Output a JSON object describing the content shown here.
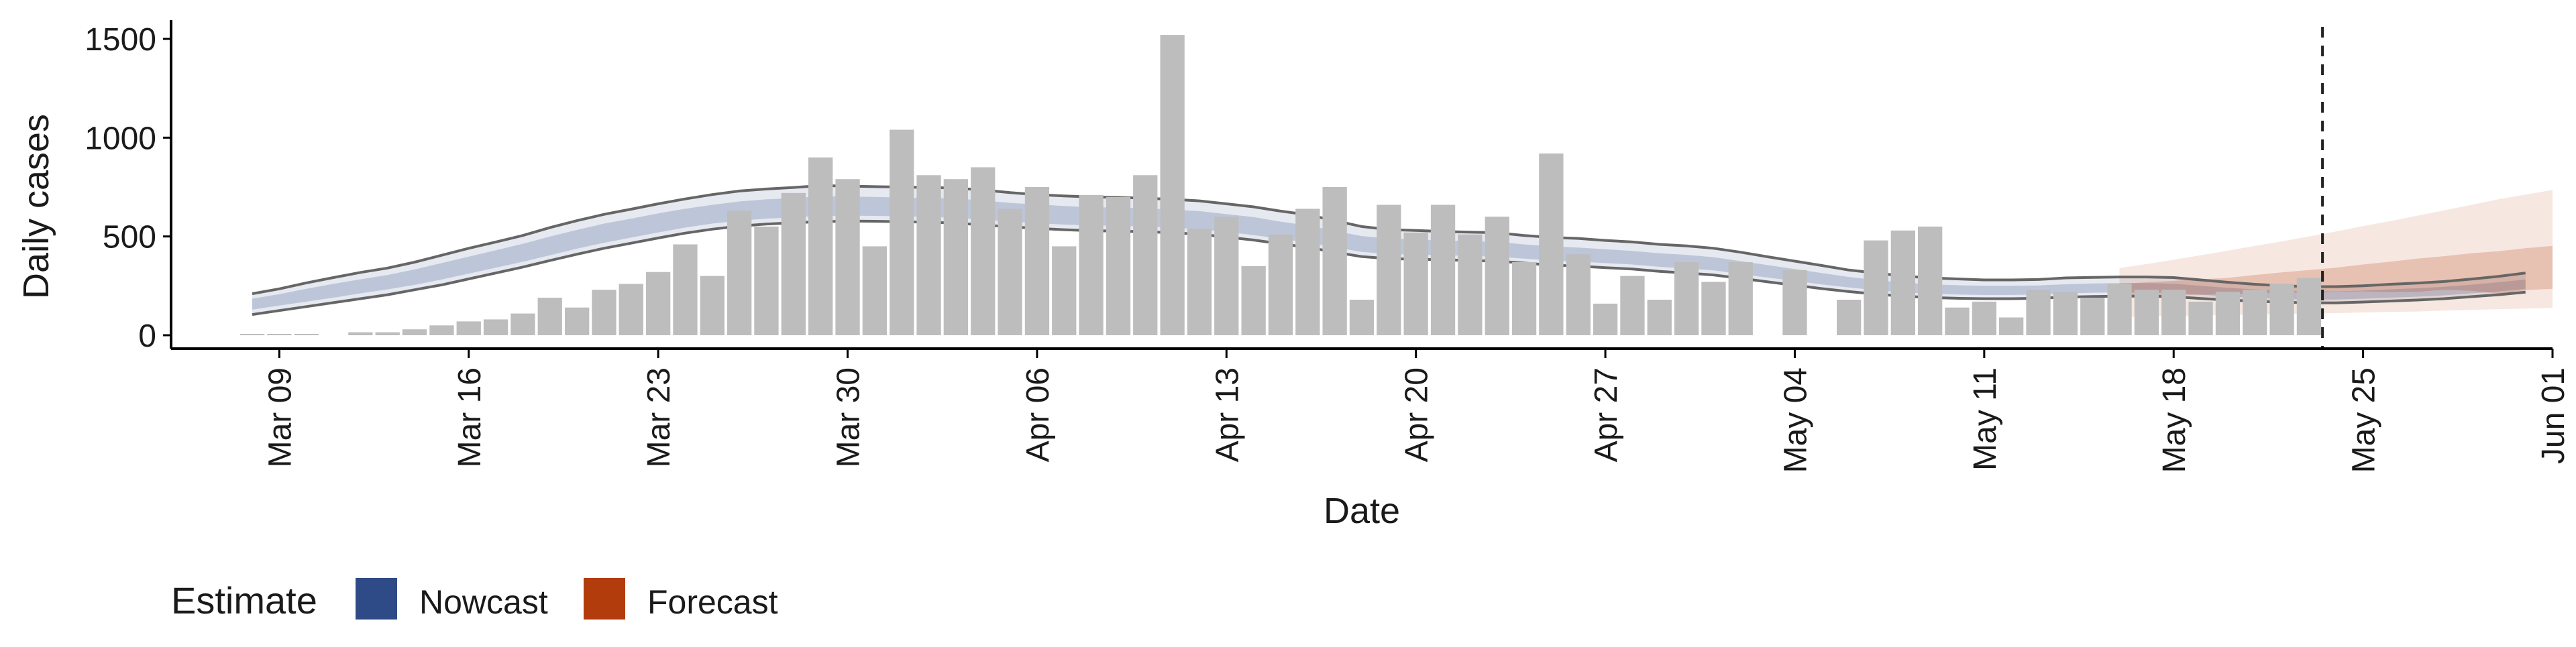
{
  "chart_data": {
    "type": "bar",
    "xlabel": "Date",
    "ylabel": "Daily cases",
    "ylim": [
      0,
      1500
    ],
    "y_ticks": [
      0,
      500,
      1000,
      1500
    ],
    "x_range": [
      "2020-03-05",
      "2020-06-01"
    ],
    "x_ticks": [
      {
        "date": "2020-03-09",
        "label": "Mar 09"
      },
      {
        "date": "2020-03-16",
        "label": "Mar 16"
      },
      {
        "date": "2020-03-23",
        "label": "Mar 23"
      },
      {
        "date": "2020-03-30",
        "label": "Mar 30"
      },
      {
        "date": "2020-04-06",
        "label": "Apr 06"
      },
      {
        "date": "2020-04-13",
        "label": "Apr 13"
      },
      {
        "date": "2020-04-20",
        "label": "Apr 20"
      },
      {
        "date": "2020-04-27",
        "label": "Apr 27"
      },
      {
        "date": "2020-05-04",
        "label": "May 04"
      },
      {
        "date": "2020-05-11",
        "label": "May 11"
      },
      {
        "date": "2020-05-18",
        "label": "May 18"
      },
      {
        "date": "2020-05-25",
        "label": "May 25"
      },
      {
        "date": "2020-06-01",
        "label": "Jun 01"
      }
    ],
    "grid": false,
    "legend_position": "bottom-left",
    "legend": {
      "title": "Estimate",
      "items": [
        {
          "label": "Nowcast",
          "color": "#2f4b87"
        },
        {
          "label": "Forecast",
          "color": "#b33c0c"
        }
      ]
    },
    "vline_date": "2020-05-23",
    "bar_color": "#bdbdbd",
    "observed_cases": {
      "start_date": "2020-03-08",
      "values": [
        5,
        5,
        5,
        0,
        15,
        15,
        30,
        50,
        70,
        80,
        110,
        190,
        140,
        230,
        260,
        320,
        460,
        300,
        630,
        550,
        720,
        900,
        790,
        450,
        1040,
        810,
        790,
        850,
        640,
        750,
        450,
        710,
        700,
        810,
        1520,
        540,
        600,
        350,
        510,
        640,
        750,
        180,
        660,
        520,
        660,
        510,
        600,
        370,
        920,
        410,
        160,
        300,
        180,
        370,
        270,
        370,
        0,
        330,
        0,
        180,
        480,
        530,
        550,
        140,
        170,
        90,
        230,
        220,
        190,
        260,
        230,
        230,
        170,
        220,
        230,
        260,
        290
      ]
    },
    "series": [
      {
        "name": "Nowcast",
        "color": "#2f4b87",
        "start_date": "2020-03-08",
        "outer_upper": [
          210,
          235,
          265,
          292,
          318,
          340,
          370,
          405,
          440,
          472,
          505,
          545,
          580,
          612,
          638,
          665,
          690,
          712,
          730,
          740,
          748,
          757,
          755,
          752,
          750,
          748,
          745,
          735,
          722,
          712,
          705,
          700,
          698,
          693,
          688,
          680,
          665,
          650,
          628,
          610,
          580,
          550,
          535,
          530,
          525,
          522,
          519,
          505,
          495,
          490,
          480,
          472,
          460,
          452,
          440,
          420,
          397,
          375,
          353,
          330,
          315,
          300,
          290,
          285,
          280,
          280,
          282,
          290,
          293,
          295,
          295,
          292,
          280,
          268,
          258,
          250,
          246,
          246,
          250,
          258,
          264,
          272,
          284,
          298,
          315
        ],
        "inner_upper": [
          185,
          208,
          235,
          260,
          283,
          305,
          333,
          365,
          398,
          430,
          463,
          500,
          533,
          565,
          590,
          617,
          640,
          660,
          677,
          688,
          694,
          703,
          702,
          700,
          697,
          695,
          692,
          682,
          670,
          662,
          654,
          648,
          646,
          642,
          636,
          628,
          613,
          598,
          575,
          556,
          528,
          502,
          490,
          485,
          480,
          476,
          472,
          460,
          450,
          444,
          435,
          427,
          415,
          407,
          395,
          375,
          355,
          335,
          315,
          295,
          280,
          266,
          258,
          253,
          250,
          250,
          252,
          258,
          262,
          264,
          264,
          261,
          250,
          240,
          232,
          226,
          222,
          222,
          226,
          232,
          238,
          245,
          256,
          268,
          282
        ],
        "inner_lower": [
          130,
          150,
          170,
          190,
          212,
          232,
          255,
          282,
          312,
          342,
          372,
          405,
          438,
          468,
          494,
          520,
          545,
          565,
          580,
          590,
          597,
          603,
          605,
          604,
          602,
          599,
          595,
          585,
          576,
          567,
          560,
          556,
          554,
          550,
          545,
          537,
          523,
          507,
          488,
          470,
          445,
          422,
          411,
          408,
          405,
          401,
          398,
          388,
          378,
          373,
          365,
          358,
          346,
          338,
          328,
          310,
          292,
          275,
          257,
          242,
          228,
          217,
          210,
          206,
          204,
          204,
          206,
          212,
          215,
          217,
          217,
          214,
          205,
          196,
          190,
          184,
          181,
          181,
          185,
          190,
          195,
          202,
          212,
          222,
          235
        ],
        "outer_lower": [
          105,
          125,
          145,
          165,
          185,
          205,
          230,
          255,
          285,
          315,
          345,
          378,
          410,
          440,
          466,
          492,
          517,
          537,
          552,
          563,
          569,
          575,
          578,
          577,
          575,
          572,
          568,
          558,
          549,
          541,
          534,
          529,
          527,
          524,
          519,
          511,
          497,
          482,
          463,
          445,
          420,
          398,
          388,
          385,
          382,
          378,
          375,
          365,
          355,
          350,
          342,
          335,
          323,
          315,
          305,
          288,
          270,
          253,
          236,
          221,
          208,
          198,
          191,
          187,
          185,
          185,
          187,
          193,
          196,
          198,
          198,
          195,
          186,
          178,
          172,
          167,
          164,
          164,
          168,
          173,
          178,
          185,
          195,
          205,
          218
        ]
      },
      {
        "name": "Forecast",
        "color": "#b33c0c",
        "start_date": "2020-05-16",
        "outer_upper": [
          340,
          360,
          382,
          405,
          428,
          452,
          475,
          500,
          525,
          552,
          578,
          605,
          632,
          660,
          688,
          712,
          735
        ],
        "inner_upper": [
          260,
          268,
          275,
          283,
          290,
          305,
          318,
          330,
          342,
          358,
          372,
          388,
          400,
          415,
          425,
          440,
          452
        ],
        "inner_lower": [
          195,
          200,
          203,
          205,
          208,
          212,
          218,
          215,
          220,
          222,
          218,
          220,
          230,
          225,
          210,
          228,
          235
        ],
        "outer_lower": [
          90,
          95,
          98,
          100,
          102,
          105,
          108,
          110,
          112,
          115,
          118,
          120,
          125,
          128,
          132,
          135,
          138
        ]
      }
    ]
  }
}
